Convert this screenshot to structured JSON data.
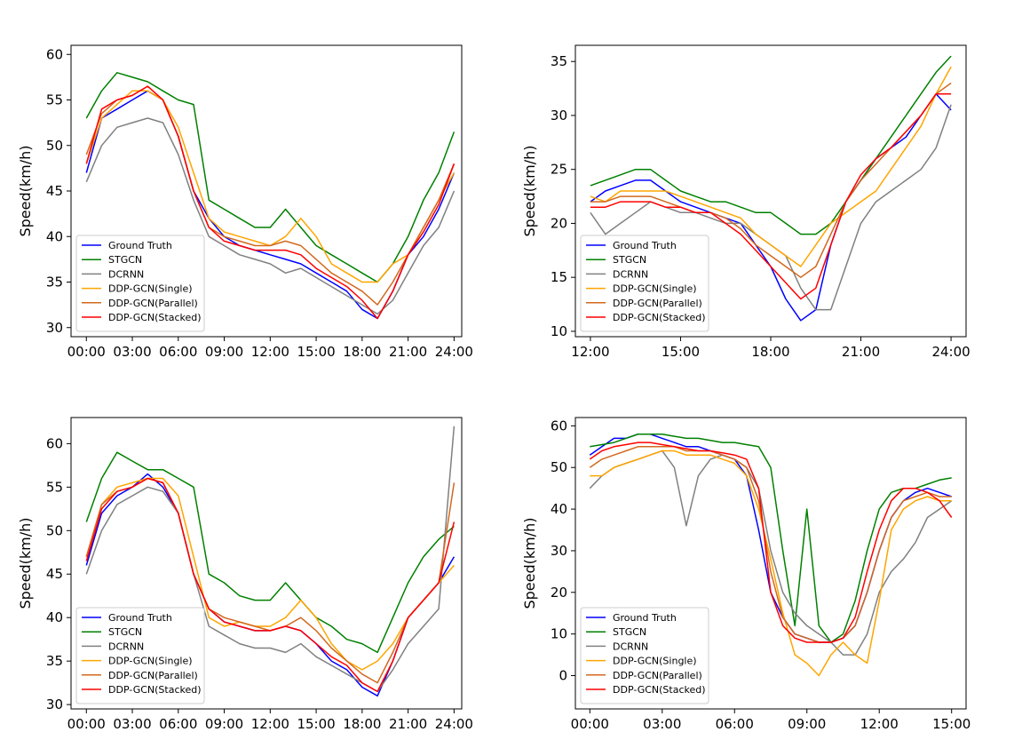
{
  "colors": {
    "Ground Truth": "#0000ff",
    "STGCN": "#008000",
    "DCRNN": "#808080",
    "DDP-GCN(Single)": "#ffa500",
    "DDP-GCN(Parallel)": "#d2691e",
    "DDP-GCN(Stacked)": "#ff0000"
  },
  "chart_data": [
    {
      "type": "line",
      "title": "",
      "xlabel": "",
      "ylabel": "Speed(km/h)",
      "xlim": [
        -1,
        24.5
      ],
      "ylim": [
        29,
        61
      ],
      "x_ticks": [
        0,
        3,
        6,
        9,
        12,
        15,
        18,
        21,
        24
      ],
      "x_tick_labels": [
        "00:00",
        "03:00",
        "06:00",
        "09:00",
        "12:00",
        "15:00",
        "18:00",
        "21:00",
        "24:00"
      ],
      "y_ticks": [
        30,
        35,
        40,
        45,
        50,
        55,
        60
      ],
      "y_tick_labels": [
        "30",
        "35",
        "40",
        "45",
        "50",
        "55",
        "60"
      ],
      "legend_location": "lower-left",
      "legend": [
        "Ground Truth",
        "STGCN",
        "DCRNN",
        "DDP-GCN(Single)",
        "DDP-GCN(Parallel)",
        "DDP-GCN(Stacked)"
      ],
      "x": [
        0,
        1,
        2,
        3,
        4,
        5,
        6,
        7,
        8,
        9,
        10,
        11,
        12,
        13,
        14,
        15,
        16,
        17,
        18,
        19,
        20,
        21,
        22,
        23,
        24
      ],
      "series": [
        {
          "name": "Ground Truth",
          "values": [
            47,
            53,
            54,
            55,
            56,
            55,
            51,
            45,
            42,
            40,
            39,
            38.5,
            38,
            37.5,
            37,
            36,
            35,
            34,
            32,
            31,
            34,
            38,
            40,
            43,
            47
          ]
        },
        {
          "name": "STGCN",
          "values": [
            53,
            56,
            58,
            57.5,
            57,
            56,
            55,
            54.5,
            44,
            43,
            42,
            41,
            41,
            43,
            41,
            39,
            38,
            37,
            36,
            35,
            37,
            40,
            44,
            47,
            51.5
          ]
        },
        {
          "name": "DCRNN",
          "values": [
            46,
            50,
            52,
            52.5,
            53,
            52.5,
            49,
            44,
            40,
            39,
            38,
            37.5,
            37,
            36,
            36.5,
            35.5,
            34.5,
            33.5,
            32.5,
            31.5,
            33,
            36,
            39,
            41,
            45
          ]
        },
        {
          "name": "DDP-GCN(Single)",
          "values": [
            48,
            53,
            54.5,
            56,
            56,
            55,
            52,
            47,
            42,
            40.5,
            40,
            39.5,
            39,
            40,
            42,
            40,
            37,
            36,
            35,
            35,
            37,
            38,
            41,
            44,
            47
          ]
        },
        {
          "name": "DDP-GCN(Parallel)",
          "values": [
            49,
            53.5,
            55,
            55.5,
            56.5,
            55,
            51,
            45,
            41,
            40,
            39.5,
            39,
            39,
            39.5,
            39,
            37.5,
            36,
            35,
            34,
            32.5,
            35,
            38,
            41,
            44,
            48
          ]
        },
        {
          "name": "DDP-GCN(Stacked)",
          "values": [
            48,
            54,
            55,
            55.5,
            56.5,
            55,
            51,
            45,
            41,
            39.5,
            39,
            38.5,
            38.5,
            38.5,
            38,
            36.5,
            35.5,
            34.5,
            33,
            31,
            34,
            38,
            40.5,
            43.5,
            48
          ]
        }
      ]
    },
    {
      "type": "line",
      "title": "",
      "xlabel": "",
      "ylabel": "Speed(km/h)",
      "xlim": [
        11.5,
        24.5
      ],
      "ylim": [
        9.5,
        36.5
      ],
      "x_ticks": [
        12,
        15,
        18,
        21,
        24
      ],
      "x_tick_labels": [
        "12:00",
        "15:00",
        "18:00",
        "21:00",
        "24:00"
      ],
      "y_ticks": [
        10,
        15,
        20,
        25,
        30,
        35
      ],
      "y_tick_labels": [
        "10",
        "15",
        "20",
        "25",
        "30",
        "35"
      ],
      "legend_location": "lower-left",
      "legend": [
        "Ground Truth",
        "STGCN",
        "DCRNN",
        "DDP-GCN(Single)",
        "DDP-GCN(Parallel)",
        "DDP-GCN(Stacked)"
      ],
      "x": [
        12,
        12.5,
        13,
        13.5,
        14,
        14.5,
        15,
        15.5,
        16,
        16.5,
        17,
        17.5,
        18,
        18.5,
        19,
        19.5,
        20,
        20.5,
        21,
        21.5,
        22,
        22.5,
        23,
        23.5,
        24
      ],
      "series": [
        {
          "name": "Ground Truth",
          "values": [
            22,
            23,
            23.5,
            24,
            24,
            23,
            22,
            21.5,
            21,
            20.5,
            20,
            18,
            16,
            13,
            11,
            12,
            18,
            22,
            24,
            26,
            27,
            28,
            30,
            32,
            30.5
          ]
        },
        {
          "name": "STGCN",
          "values": [
            23.5,
            24,
            24.5,
            25,
            25,
            24,
            23,
            22.5,
            22,
            22,
            21.5,
            21,
            21,
            20,
            19,
            19,
            20,
            22,
            24,
            26,
            28,
            30,
            32,
            34,
            35.5
          ]
        },
        {
          "name": "DCRNN",
          "values": [
            21,
            19,
            20,
            21,
            22,
            21.5,
            21,
            21,
            20.5,
            20,
            20,
            19,
            18,
            17,
            14,
            12,
            12,
            16,
            20,
            22,
            23,
            24,
            25,
            27,
            31
          ]
        },
        {
          "name": "DDP-GCN(Single)",
          "values": [
            22.5,
            22,
            23,
            23,
            23,
            23,
            22.5,
            22,
            21.5,
            21,
            20.5,
            19,
            18,
            17,
            16,
            18,
            20,
            21,
            22,
            23,
            25,
            27,
            29,
            32,
            34.5
          ]
        },
        {
          "name": "DDP-GCN(Parallel)",
          "values": [
            22,
            22,
            22.5,
            22.5,
            22.5,
            22,
            21.5,
            21,
            21,
            20.5,
            19.5,
            18,
            17,
            16,
            15,
            16,
            19,
            22,
            24,
            25.5,
            27,
            28.5,
            30,
            32,
            33
          ]
        },
        {
          "name": "DDP-GCN(Stacked)",
          "values": [
            21.5,
            21.5,
            22,
            22,
            22,
            21.5,
            21.5,
            21,
            21,
            20,
            19,
            17.5,
            16,
            14.5,
            13,
            14,
            18,
            22,
            24.5,
            26,
            27,
            28.5,
            30,
            32,
            32
          ]
        }
      ]
    },
    {
      "type": "line",
      "title": "",
      "xlabel": "",
      "ylabel": "Speed(km/h)",
      "xlim": [
        -1,
        24.5
      ],
      "ylim": [
        29.5,
        63
      ],
      "x_ticks": [
        0,
        3,
        6,
        9,
        12,
        15,
        18,
        21,
        24
      ],
      "x_tick_labels": [
        "00:00",
        "03:00",
        "06:00",
        "09:00",
        "12:00",
        "15:00",
        "18:00",
        "21:00",
        "24:00"
      ],
      "y_ticks": [
        30,
        35,
        40,
        45,
        50,
        55,
        60
      ],
      "y_tick_labels": [
        "30",
        "35",
        "40",
        "45",
        "50",
        "55",
        "60"
      ],
      "legend_location": "lower-left",
      "legend": [
        "Ground Truth",
        "STGCN",
        "DCRNN",
        "DDP-GCN(Single)",
        "DDP-GCN(Parallel)",
        "DDP-GCN(Stacked)"
      ],
      "x": [
        0,
        1,
        2,
        3,
        4,
        5,
        6,
        7,
        8,
        9,
        10,
        11,
        12,
        13,
        14,
        15,
        16,
        17,
        18,
        19,
        20,
        21,
        22,
        23,
        24
      ],
      "series": [
        {
          "name": "Ground Truth",
          "values": [
            46,
            52,
            54,
            55,
            56.5,
            55,
            52,
            45,
            41,
            39.5,
            39,
            38.5,
            38.5,
            39,
            38.5,
            37,
            35,
            34,
            32,
            31,
            35,
            40,
            42,
            44,
            47
          ]
        },
        {
          "name": "STGCN",
          "values": [
            51,
            56,
            59,
            58,
            57,
            57,
            56,
            55,
            45,
            44,
            42.5,
            42,
            42,
            44,
            42,
            40,
            39,
            37.5,
            37,
            36,
            40,
            44,
            47,
            49,
            50.5
          ]
        },
        {
          "name": "DCRNN",
          "values": [
            45,
            50,
            53,
            54,
            55,
            54.5,
            52,
            45,
            39,
            38,
            37,
            36.5,
            36.5,
            36,
            37,
            35.5,
            34.5,
            33.5,
            32.5,
            31.5,
            34,
            37,
            39,
            41,
            62
          ]
        },
        {
          "name": "DDP-GCN(Single)",
          "values": [
            47,
            53,
            55,
            55.5,
            56,
            56,
            54,
            47,
            40,
            39,
            39.5,
            39,
            39,
            40,
            42,
            40,
            37,
            35,
            34,
            35,
            37,
            40,
            42,
            44,
            46
          ]
        },
        {
          "name": "DDP-GCN(Parallel)",
          "values": [
            47,
            53,
            54.5,
            55,
            56,
            55.5,
            52,
            45,
            41,
            40,
            39.5,
            39,
            38.5,
            39,
            40,
            38.5,
            36.5,
            35,
            33.5,
            32.5,
            36,
            40,
            42,
            44,
            55.5
          ]
        },
        {
          "name": "DDP-GCN(Stacked)",
          "values": [
            46.5,
            52.5,
            54.5,
            55,
            56,
            55.5,
            52,
            45,
            41,
            39.5,
            39,
            38.5,
            38.5,
            39,
            38.5,
            37,
            35.5,
            34.5,
            32.5,
            31.5,
            35,
            40,
            42,
            44,
            51
          ]
        }
      ]
    },
    {
      "type": "line",
      "title": "",
      "xlabel": "",
      "ylabel": "Speed(km/h)",
      "xlim": [
        -0.6,
        15.6
      ],
      "ylim": [
        -8,
        62
      ],
      "x_ticks": [
        0,
        3,
        6,
        9,
        12,
        15
      ],
      "x_tick_labels": [
        "00:00",
        "03:00",
        "06:00",
        "09:00",
        "12:00",
        "15:00"
      ],
      "y_ticks": [
        0,
        10,
        20,
        30,
        40,
        50,
        60
      ],
      "y_tick_labels": [
        "0",
        "10",
        "20",
        "30",
        "40",
        "50",
        "60"
      ],
      "legend_location": "lower-left",
      "legend": [
        "Ground Truth",
        "STGCN",
        "DCRNN",
        "DDP-GCN(Single)",
        "DDP-GCN(Parallel)",
        "DDP-GCN(Stacked)"
      ],
      "x": [
        0,
        0.5,
        1,
        1.5,
        2,
        2.5,
        3,
        3.5,
        4,
        4.5,
        5,
        5.5,
        6,
        6.5,
        7,
        7.5,
        8,
        8.5,
        9,
        9.5,
        10,
        10.5,
        11,
        11.5,
        12,
        12.5,
        13,
        13.5,
        14,
        14.5,
        15
      ],
      "series": [
        {
          "name": "Ground Truth",
          "values": [
            53,
            55,
            57,
            57,
            58,
            58,
            57,
            56,
            55,
            55,
            54,
            53,
            52,
            48,
            35,
            20,
            14,
            10,
            9,
            8,
            8,
            9,
            12,
            20,
            30,
            38,
            42,
            44,
            45,
            44,
            43
          ]
        },
        {
          "name": "STGCN",
          "values": [
            55,
            55.5,
            56,
            57,
            58,
            58,
            58,
            57.5,
            57,
            57,
            56.5,
            56,
            56,
            55.5,
            55,
            50,
            30,
            12,
            40,
            12,
            8,
            10,
            18,
            30,
            40,
            44,
            45,
            45,
            46,
            47,
            47.5
          ]
        },
        {
          "name": "DCRNN",
          "values": [
            45,
            48,
            50,
            51,
            52,
            53,
            54,
            50,
            36,
            48,
            52,
            53,
            52,
            50,
            45,
            30,
            20,
            15,
            12,
            10,
            8,
            5,
            5,
            10,
            20,
            25,
            28,
            32,
            38,
            40,
            42
          ]
        },
        {
          "name": "DDP-GCN(Single)",
          "values": [
            48,
            48,
            50,
            51,
            52,
            53,
            54,
            54,
            53,
            53,
            53,
            52,
            51,
            48,
            40,
            28,
            15,
            5,
            3,
            0,
            5,
            8,
            5,
            3,
            18,
            35,
            40,
            42,
            43,
            42,
            42
          ]
        },
        {
          "name": "DDP-GCN(Parallel)",
          "values": [
            50,
            52,
            53,
            54,
            55,
            55,
            55,
            55,
            54,
            54,
            54,
            53,
            52,
            50,
            42,
            25,
            14,
            10,
            9,
            8,
            8,
            9,
            12,
            20,
            30,
            38,
            42,
            43,
            44,
            43,
            43
          ]
        },
        {
          "name": "DDP-GCN(Stacked)",
          "values": [
            52,
            54,
            55,
            55.5,
            56,
            56,
            55.5,
            55,
            54.5,
            54,
            54,
            53.5,
            53,
            52,
            45,
            20,
            12,
            9,
            8,
            8,
            8,
            9,
            14,
            25,
            35,
            42,
            45,
            45,
            44,
            42,
            38
          ]
        }
      ]
    }
  ]
}
